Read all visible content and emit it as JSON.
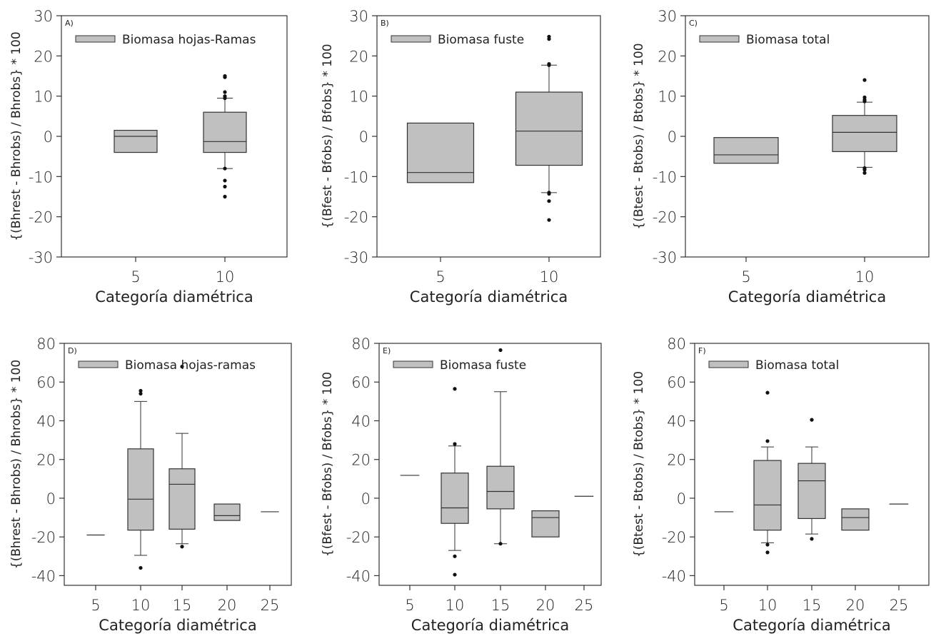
{
  "chart_data": [
    {
      "type": "box",
      "panel": "A)",
      "legend": "Biomasa hojas-Ramas",
      "xlabel": "Categoría diamétrica",
      "ylabel": "{(Bhrest - Bhrobs) / Bhrobs} * 100",
      "ylim": [
        -30,
        30
      ],
      "yticks": [
        -30,
        -20,
        -10,
        0,
        10,
        20,
        30
      ],
      "categories": [
        "5",
        "10"
      ],
      "boxes": [
        {
          "category": "5",
          "q1": -4,
          "median": 0,
          "q3": 1.5,
          "whisker_low": null,
          "whisker_high": null,
          "outliers": []
        },
        {
          "category": "10",
          "q1": -4,
          "median": -1.3,
          "q3": 6,
          "whisker_low": -8,
          "whisker_high": 9.5,
          "outliers": [
            15,
            14.7,
            11,
            10,
            9.5,
            -8,
            -11,
            -12.5,
            -15
          ]
        }
      ],
      "grid": false
    },
    {
      "type": "box",
      "panel": "B)",
      "legend": "Biomasa fuste",
      "xlabel": "Categoría diamétrica",
      "ylabel": "{(Bfest - Bfobs) / Bfobs} * 100",
      "ylim": [
        -30,
        30
      ],
      "yticks": [
        -30,
        -20,
        -10,
        0,
        10,
        20,
        30
      ],
      "categories": [
        "5",
        "10"
      ],
      "boxes": [
        {
          "category": "5",
          "q1": -11.5,
          "median": -9,
          "q3": 3.3,
          "whisker_low": null,
          "whisker_high": null,
          "outliers": []
        },
        {
          "category": "10",
          "q1": -7.2,
          "median": 1.3,
          "q3": 11,
          "whisker_low": -14,
          "whisker_high": 17.7,
          "outliers": [
            24.8,
            24.2,
            18,
            17.7,
            -14,
            -14.3,
            -16.1,
            -20.8
          ]
        }
      ],
      "grid": false
    },
    {
      "type": "box",
      "panel": "C)",
      "legend": "Biomasa total",
      "xlabel": "Categoría diamétrica",
      "ylabel": "{(Btest - Btobs) / Btobs} * 100",
      "ylim": [
        -30,
        30
      ],
      "yticks": [
        -30,
        -20,
        -10,
        0,
        10,
        20,
        30
      ],
      "categories": [
        "5",
        "10"
      ],
      "boxes": [
        {
          "category": "5",
          "q1": -6.7,
          "median": -4.6,
          "q3": -0.3,
          "whisker_low": null,
          "whisker_high": null,
          "outliers": []
        },
        {
          "category": "10",
          "q1": -3.8,
          "median": 1,
          "q3": 5.2,
          "whisker_low": -7.7,
          "whisker_high": 8.5,
          "outliers": [
            14,
            9.7,
            9.1,
            8.7,
            -7.9,
            -8.3,
            -9.1
          ]
        }
      ],
      "grid": false
    },
    {
      "type": "box",
      "panel": "D)",
      "legend": "Biomasa hojas-ramas",
      "xlabel": "Categoría diamétrica",
      "ylabel": "{(Bhrest - Bhrobs) / Bhrobs} * 100",
      "ylim": [
        -45,
        80
      ],
      "yticks": [
        -40,
        -20,
        0,
        20,
        40,
        60,
        80
      ],
      "categories": [
        "5",
        "10",
        "15",
        "20",
        "25"
      ],
      "boxes": [
        {
          "category": "5",
          "q1": -19,
          "median": -19,
          "q3": -19,
          "whisker_low": null,
          "whisker_high": null,
          "outliers": []
        },
        {
          "category": "10",
          "q1": -16.5,
          "median": -0.5,
          "q3": 25.5,
          "whisker_low": -29.5,
          "whisker_high": 50,
          "outliers": [
            55.5,
            54,
            -36
          ]
        },
        {
          "category": "15",
          "q1": -16,
          "median": 7.2,
          "q3": 15.2,
          "whisker_low": -23.5,
          "whisker_high": 33.5,
          "outliers": [
            68,
            -25
          ]
        },
        {
          "category": "20",
          "q1": -11.5,
          "median": -9,
          "q3": -3,
          "whisker_low": null,
          "whisker_high": null,
          "outliers": []
        },
        {
          "category": "25",
          "q1": -7,
          "median": -7,
          "q3": -7,
          "whisker_low": null,
          "whisker_high": null,
          "outliers": []
        }
      ],
      "grid": false
    },
    {
      "type": "box",
      "panel": "E)",
      "legend": "Biomasa fuste",
      "xlabel": "Categoría diamétrica",
      "ylabel": "{(Bfest - Bfobs) / Bfobs} * 100",
      "ylim": [
        -45,
        80
      ],
      "yticks": [
        -40,
        -20,
        0,
        20,
        40,
        60,
        80
      ],
      "categories": [
        "5",
        "10",
        "15",
        "20",
        "25"
      ],
      "boxes": [
        {
          "category": "5",
          "q1": 11.8,
          "median": 11.8,
          "q3": 11.8,
          "whisker_low": null,
          "whisker_high": null,
          "outliers": []
        },
        {
          "category": "10",
          "q1": -13,
          "median": -5,
          "q3": 13,
          "whisker_low": -27,
          "whisker_high": 27,
          "outliers": [
            56.5,
            28,
            -30,
            -39.5
          ]
        },
        {
          "category": "15",
          "q1": -5.5,
          "median": 3.5,
          "q3": 16.5,
          "whisker_low": -23.5,
          "whisker_high": 55,
          "outliers": [
            76.5,
            -23.5
          ]
        },
        {
          "category": "20",
          "q1": -20,
          "median": -10,
          "q3": -6.5,
          "whisker_low": null,
          "whisker_high": null,
          "outliers": []
        },
        {
          "category": "25",
          "q1": 1,
          "median": 1,
          "q3": 1,
          "whisker_low": null,
          "whisker_high": null,
          "outliers": []
        }
      ],
      "grid": false
    },
    {
      "type": "box",
      "panel": "F)",
      "legend": "Biomasa total",
      "xlabel": "Categoría diamétrica",
      "ylabel": "{(Btest - Btobs) / Btobs} * 100",
      "ylim": [
        -45,
        80
      ],
      "yticks": [
        -40,
        -20,
        0,
        20,
        40,
        60,
        80
      ],
      "categories": [
        "5",
        "10",
        "15",
        "20",
        "25"
      ],
      "boxes": [
        {
          "category": "5",
          "q1": -7,
          "median": -7,
          "q3": -7,
          "whisker_low": null,
          "whisker_high": null,
          "outliers": []
        },
        {
          "category": "10",
          "q1": -16.5,
          "median": -3.5,
          "q3": 19.5,
          "whisker_low": -23,
          "whisker_high": 26.5,
          "outliers": [
            54.5,
            29.5,
            -24,
            -28
          ]
        },
        {
          "category": "15",
          "q1": -10.5,
          "median": 9,
          "q3": 18,
          "whisker_low": -18.5,
          "whisker_high": 26.5,
          "outliers": [
            40.5,
            -21
          ]
        },
        {
          "category": "20",
          "q1": -16.5,
          "median": -10,
          "q3": -5.5,
          "whisker_low": null,
          "whisker_high": null,
          "outliers": []
        },
        {
          "category": "25",
          "q1": -3,
          "median": -3,
          "q3": -3,
          "whisker_low": null,
          "whisker_high": null,
          "outliers": []
        }
      ],
      "grid": false
    }
  ],
  "style": {
    "box_fill": "#c0c0c0",
    "stroke": "#333333",
    "outlier": "#111111",
    "background": "#ffffff"
  }
}
